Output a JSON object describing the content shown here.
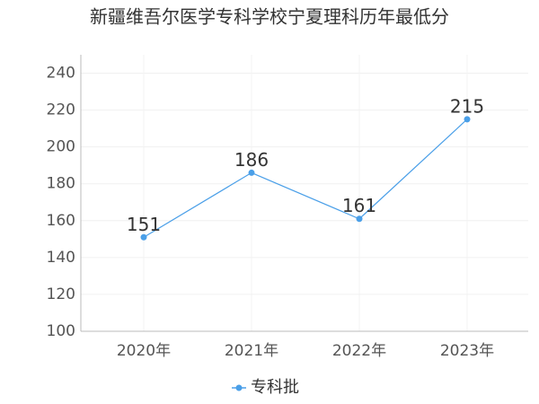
{
  "chart_data": {
    "type": "line",
    "title": "新疆维吾尔医学专科学校宁夏理科历年最低分",
    "categories": [
      "2020年",
      "2021年",
      "2022年",
      "2023年"
    ],
    "series": [
      {
        "name": "专科批",
        "color": "#4a9fe8",
        "values": [
          151,
          186,
          161,
          215
        ]
      }
    ],
    "ylim": [
      100,
      250
    ],
    "yticks": [
      100,
      120,
      140,
      160,
      180,
      200,
      220,
      240
    ],
    "grid": true
  }
}
